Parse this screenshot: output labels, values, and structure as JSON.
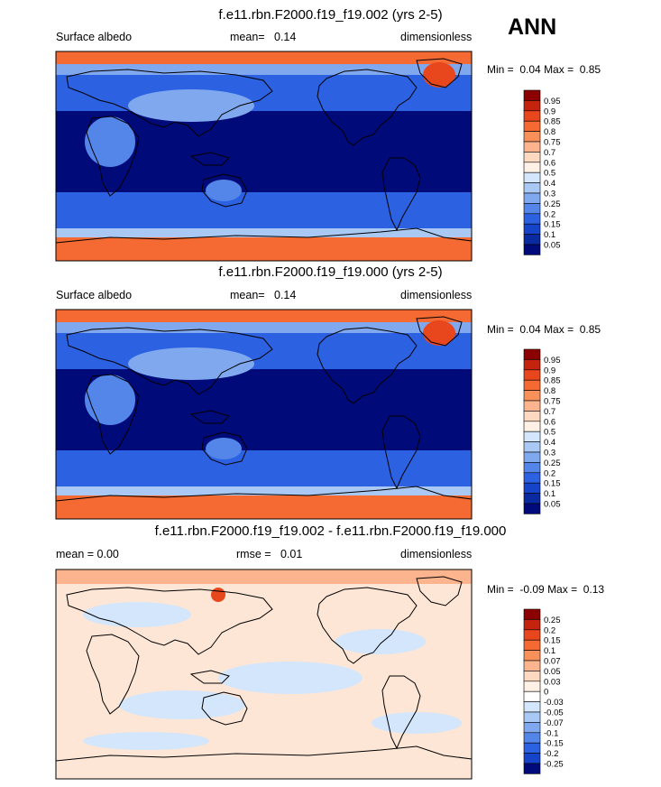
{
  "season": "ANN",
  "panels": [
    {
      "title": "f.e11.rbn.F2000.f19_f19.002 (yrs 2-5)",
      "left_label": "Surface albedo",
      "mean_label": "mean=",
      "mean_value": "0.14",
      "right_label": "dimensionless",
      "min_label": "Min =",
      "min_value": "0.04",
      "max_label": "Max =",
      "max_value": "0.85",
      "colorbar_labels": [
        "0.95",
        "0.9",
        "0.85",
        "0.8",
        "0.75",
        "0.7",
        "0.6",
        "0.5",
        "0.4",
        "0.3",
        "0.25",
        "0.2",
        "0.15",
        "0.1",
        "0.05"
      ],
      "colorbar_colors": [
        "#8b0000",
        "#c4240e",
        "#e8461c",
        "#f46a32",
        "#f8905a",
        "#fbb48e",
        "#fdd9c2",
        "#fff1e5",
        "#d3e6fb",
        "#a9c9f4",
        "#7fa8ee",
        "#5486ea",
        "#2c62e2",
        "#1644c8",
        "#0a2aa0",
        "#000a78"
      ]
    },
    {
      "title": "f.e11.rbn.F2000.f19_f19.000 (yrs 2-5)",
      "left_label": "Surface albedo",
      "mean_label": "mean=",
      "mean_value": "0.14",
      "right_label": "dimensionless",
      "min_label": "Min =",
      "min_value": "0.04",
      "max_label": "Max =",
      "max_value": "0.85",
      "colorbar_labels": [
        "0.95",
        "0.9",
        "0.85",
        "0.8",
        "0.75",
        "0.7",
        "0.6",
        "0.5",
        "0.4",
        "0.3",
        "0.25",
        "0.2",
        "0.15",
        "0.1",
        "0.05"
      ],
      "colorbar_colors": [
        "#8b0000",
        "#c4240e",
        "#e8461c",
        "#f46a32",
        "#f8905a",
        "#fbb48e",
        "#fdd9c2",
        "#fff1e5",
        "#d3e6fb",
        "#a9c9f4",
        "#7fa8ee",
        "#5486ea",
        "#2c62e2",
        "#1644c8",
        "#0a2aa0",
        "#000a78"
      ]
    },
    {
      "title": "f.e11.rbn.F2000.f19_f19.002 - f.e11.rbn.F2000.f19_f19.000",
      "left_label": "mean =   0.00",
      "mean_label": "rmse =",
      "mean_value": "0.01",
      "right_label": "dimensionless",
      "min_label": "Min =",
      "min_value": "-0.09",
      "max_label": "Max =",
      "max_value": "0.13",
      "colorbar_labels": [
        "0.25",
        "0.2",
        "0.15",
        "0.1",
        "0.07",
        "0.05",
        "0.03",
        "0",
        "-0.03",
        "-0.05",
        "-0.07",
        "-0.1",
        "-0.15",
        "-0.2",
        "-0.25"
      ],
      "colorbar_colors": [
        "#8b0000",
        "#c4240e",
        "#e8461c",
        "#f46a32",
        "#f8905a",
        "#fbb48e",
        "#fdd9c2",
        "#fff1e5",
        "#ffffff",
        "#d3e6fb",
        "#a9c9f4",
        "#7fa8ee",
        "#5486ea",
        "#2c62e2",
        "#1644c8",
        "#000a78"
      ]
    }
  ],
  "chart_data": [
    {
      "type": "heatmap",
      "title": "f.e11.rbn.F2000.f19_f19.002 (yrs 2-5)",
      "variable": "Surface albedo",
      "units": "dimensionless",
      "mean": 0.14,
      "min": 0.04,
      "max": 0.85,
      "levels": [
        0.05,
        0.1,
        0.15,
        0.2,
        0.25,
        0.3,
        0.4,
        0.5,
        0.6,
        0.7,
        0.75,
        0.8,
        0.85,
        0.9,
        0.95
      ]
    },
    {
      "type": "heatmap",
      "title": "f.e11.rbn.F2000.f19_f19.000 (yrs 2-5)",
      "variable": "Surface albedo",
      "units": "dimensionless",
      "mean": 0.14,
      "min": 0.04,
      "max": 0.85,
      "levels": [
        0.05,
        0.1,
        0.15,
        0.2,
        0.25,
        0.3,
        0.4,
        0.5,
        0.6,
        0.7,
        0.75,
        0.8,
        0.85,
        0.9,
        0.95
      ]
    },
    {
      "type": "heatmap",
      "title": "f.e11.rbn.F2000.f19_f19.002 - f.e11.rbn.F2000.f19_f19.000",
      "units": "dimensionless",
      "mean": 0.0,
      "rmse": 0.01,
      "min": -0.09,
      "max": 0.13,
      "levels": [
        -0.25,
        -0.2,
        -0.15,
        -0.1,
        -0.07,
        -0.05,
        -0.03,
        0,
        0.03,
        0.05,
        0.07,
        0.1,
        0.15,
        0.2,
        0.25
      ]
    }
  ]
}
